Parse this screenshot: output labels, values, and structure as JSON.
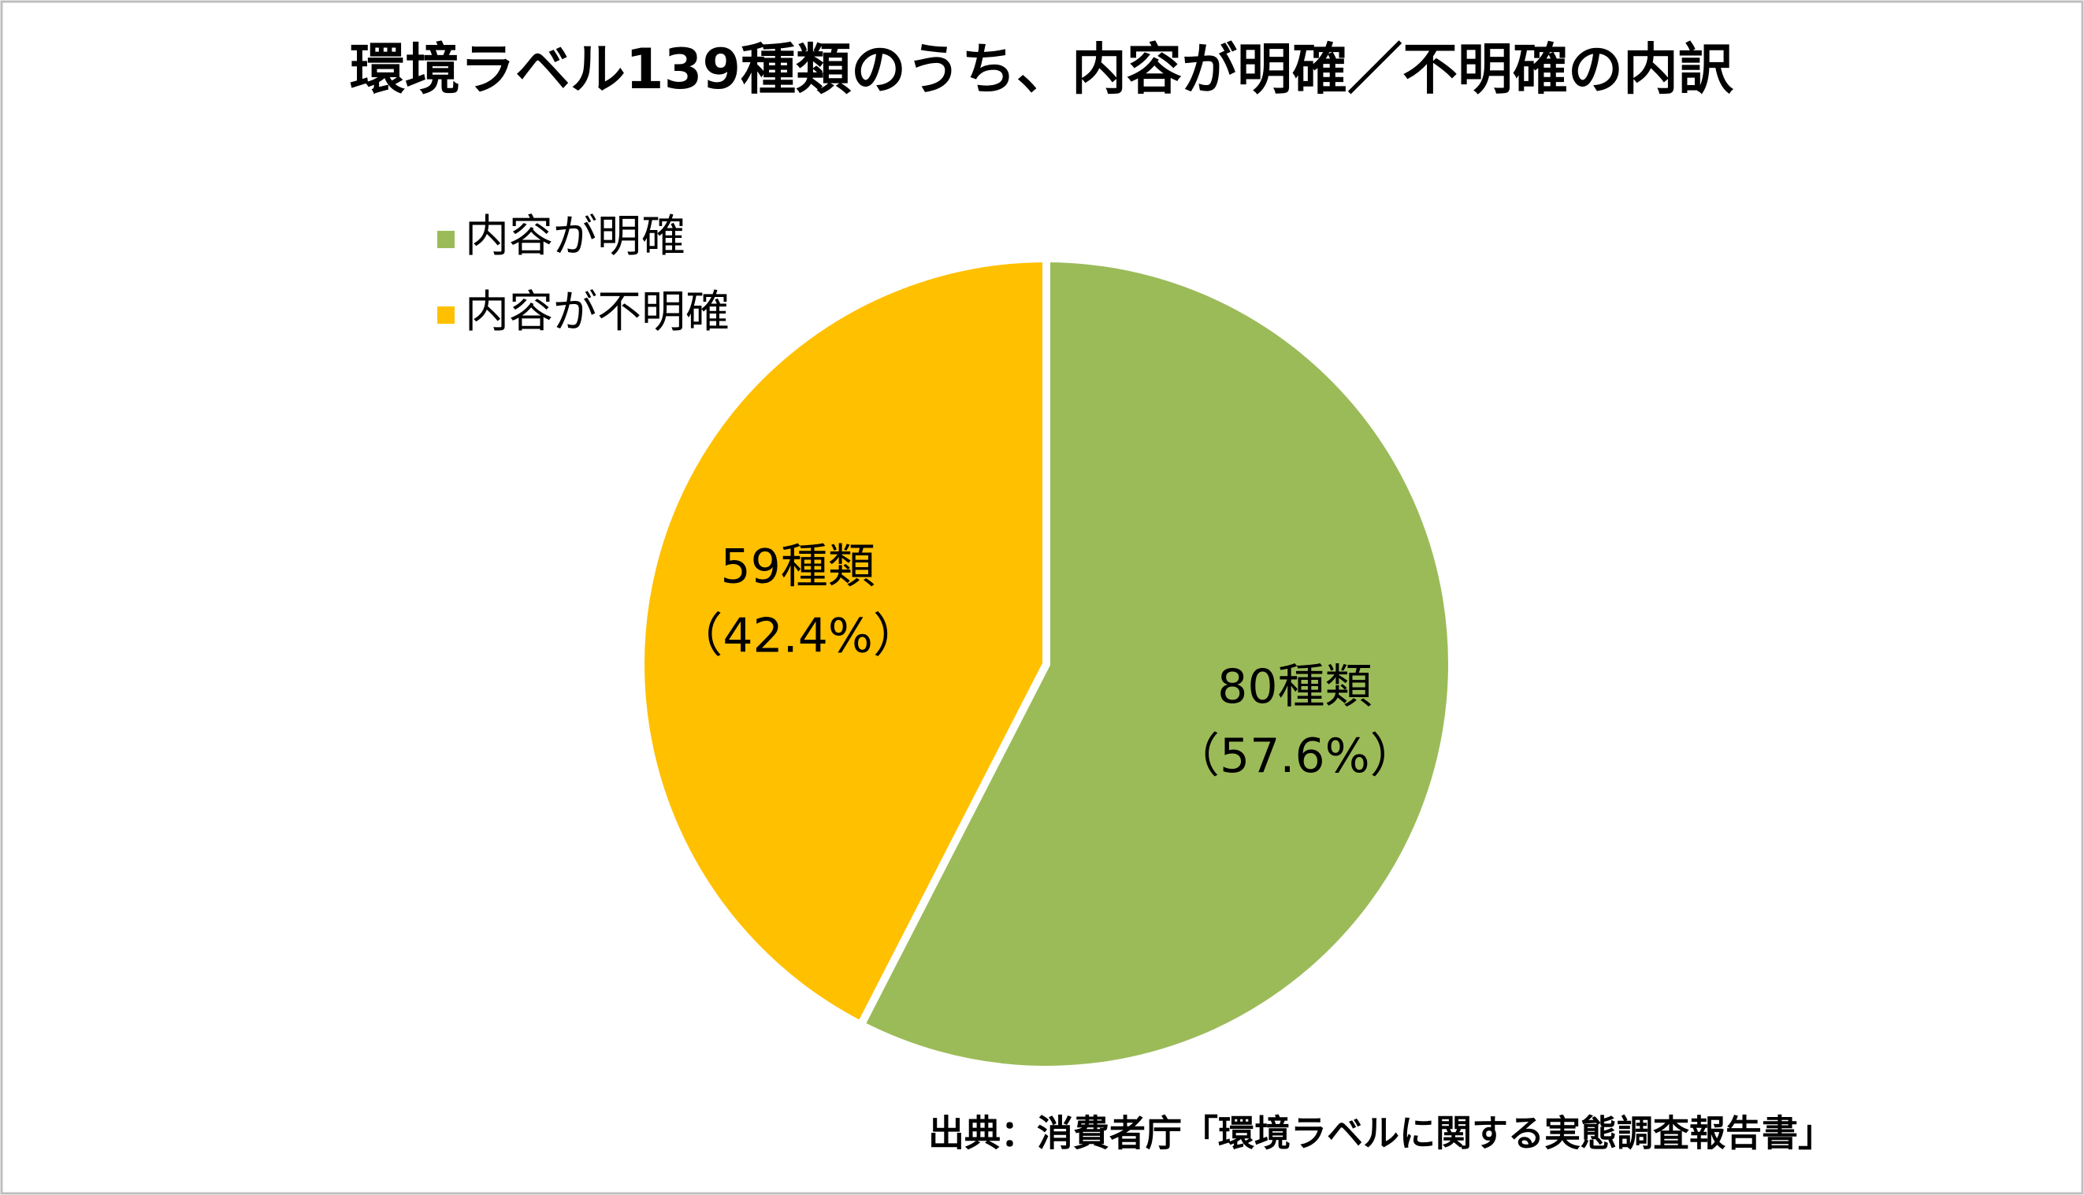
{
  "chart_data": {
    "type": "pie",
    "title": "環境ラベル139種類のうち、内容が明確／不明確の内訳",
    "categories": [
      "内容が明確",
      "内容が不明確"
    ],
    "values": [
      80,
      59
    ],
    "value_labels": [
      "80種類",
      "59種類"
    ],
    "percent_labels": [
      "（57.6%）",
      "（42.4%）"
    ],
    "colors": [
      "#9bbb59",
      "#ffc000"
    ],
    "legend": "top-left",
    "source": "出典：消費者庁「環境ラベルに関する実態調査報告書」"
  }
}
